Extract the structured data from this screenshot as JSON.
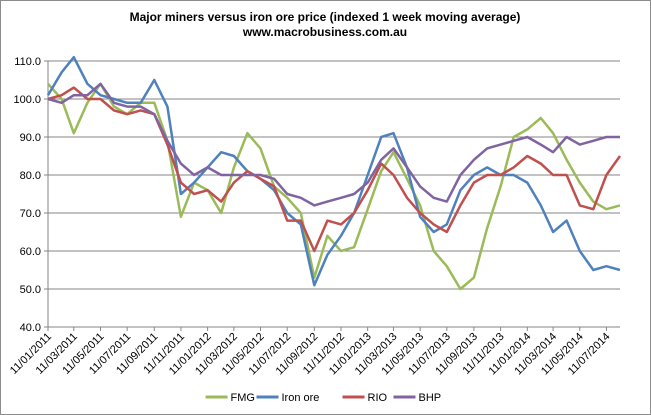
{
  "chart_data": {
    "type": "line",
    "title": "Major miners versus iron ore price (indexed 1 week moving average)",
    "subtitle": "www.macrobusiness.com.au",
    "xlabel": "",
    "ylabel": "",
    "ylim": [
      40.0,
      110.0
    ],
    "yticks": [
      "40.0",
      "50.0",
      "60.0",
      "70.0",
      "80.0",
      "90.0",
      "100.0",
      "110.0"
    ],
    "xlim": [
      "2011-01-11",
      "2014-08-11"
    ],
    "xticks": [
      "11/01/2011",
      "11/03/2011",
      "11/05/2011",
      "11/07/2011",
      "11/09/2011",
      "11/11/2011",
      "11/01/2012",
      "11/03/2012",
      "11/05/2012",
      "11/07/2012",
      "11/09/2012",
      "11/11/2012",
      "11/01/2013",
      "11/03/2013",
      "11/05/2013",
      "11/07/2013",
      "11/09/2013",
      "11/11/2013",
      "11/01/2014",
      "11/03/2014",
      "11/05/2014",
      "11/07/2014"
    ],
    "grid": true,
    "legend": "bottom",
    "x": [
      "2011-01-11",
      "2011-02-11",
      "2011-03-11",
      "2011-04-11",
      "2011-05-11",
      "2011-06-11",
      "2011-07-11",
      "2011-08-11",
      "2011-09-11",
      "2011-10-11",
      "2011-11-11",
      "2011-12-11",
      "2012-01-11",
      "2012-02-11",
      "2012-03-11",
      "2012-04-11",
      "2012-05-11",
      "2012-06-11",
      "2012-07-11",
      "2012-08-11",
      "2012-09-11",
      "2012-10-11",
      "2012-11-11",
      "2012-12-11",
      "2013-01-11",
      "2013-02-11",
      "2013-03-11",
      "2013-04-11",
      "2013-05-11",
      "2013-06-11",
      "2013-07-11",
      "2013-08-11",
      "2013-09-11",
      "2013-10-11",
      "2013-11-11",
      "2013-12-11",
      "2014-01-11",
      "2014-02-11",
      "2014-03-11",
      "2014-04-11",
      "2014-05-11",
      "2014-06-11",
      "2014-07-11",
      "2014-08-11"
    ],
    "series": [
      {
        "name": "FMG",
        "color": "#9bbb59",
        "values": [
          104,
          100,
          91,
          99,
          104,
          98,
          96,
          99,
          99,
          89,
          69,
          78,
          76,
          70,
          82,
          91,
          87,
          77,
          74,
          70,
          53,
          64,
          60,
          61,
          71,
          81,
          86,
          79,
          72,
          60,
          56,
          50,
          53,
          66,
          77,
          90,
          92,
          95,
          91,
          84,
          78,
          73,
          71,
          72
        ]
      },
      {
        "name": "Iron ore",
        "color": "#4f81bd",
        "values": [
          101,
          107,
          111,
          104,
          101,
          100,
          99,
          99,
          105,
          98,
          75,
          78,
          82,
          86,
          85,
          81,
          79,
          76,
          70,
          67,
          51,
          59,
          64,
          70,
          80,
          90,
          91,
          82,
          69,
          65,
          67,
          76,
          80,
          82,
          80,
          80,
          78,
          72,
          65,
          68,
          60,
          55,
          56,
          55
        ]
      },
      {
        "name": "RIO",
        "color": "#c0504d",
        "values": [
          100,
          101,
          103,
          100,
          100,
          97,
          96,
          97,
          96,
          88,
          78,
          75,
          76,
          73,
          78,
          81,
          79,
          77,
          68,
          68,
          60,
          68,
          67,
          70,
          76,
          83,
          80,
          74,
          70,
          67,
          65,
          72,
          78,
          80,
          80,
          82,
          85,
          83,
          80,
          80,
          72,
          71,
          80,
          85
        ]
      },
      {
        "name": "BHP",
        "color": "#8064a2",
        "values": [
          100,
          99,
          101,
          101,
          104,
          99,
          98,
          98,
          96,
          89,
          83,
          80,
          82,
          80,
          80,
          80,
          80,
          79,
          75,
          74,
          72,
          73,
          74,
          75,
          78,
          84,
          87,
          82,
          77,
          74,
          73,
          80,
          84,
          87,
          88,
          89,
          90,
          88,
          86,
          90,
          88,
          89,
          90,
          90
        ]
      }
    ]
  }
}
